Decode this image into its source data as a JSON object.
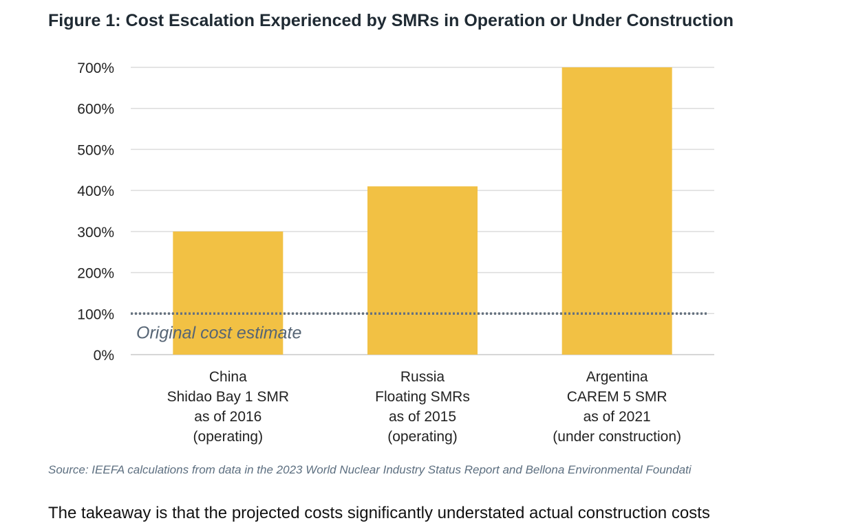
{
  "figure_title": "Figure 1: Cost Escalation Experienced by SMRs in Operation or Under Construction",
  "source_note": "Source: IEEFA calculations from data in the 2023 World Nuclear Industry Status Report and Bellona Environmental Foundati",
  "next_paragraph_fragment": "The takeaway is that the projected costs significantly understated actual construction costs",
  "chart_data": {
    "type": "bar",
    "categories": [
      [
        "China",
        "Shidao Bay 1 SMR",
        "as of 2016",
        "(operating)"
      ],
      [
        "Russia",
        "Floating SMRs",
        "as of 2015",
        "(operating)"
      ],
      [
        "Argentina",
        "CAREM 5 SMR",
        "as of 2021",
        "(under construction)"
      ]
    ],
    "values": [
      300,
      410,
      700
    ],
    "ylim": [
      0,
      700
    ],
    "yticks": [
      0,
      100,
      200,
      300,
      400,
      500,
      600,
      700
    ],
    "ytick_labels": [
      "0%",
      "100%",
      "200%",
      "300%",
      "400%",
      "500%",
      "600%",
      "700%"
    ],
    "grid": true,
    "bar_color": "#F2C144",
    "reference_line": {
      "value": 100,
      "label": "Original cost estimate",
      "color": "#65717f"
    }
  }
}
